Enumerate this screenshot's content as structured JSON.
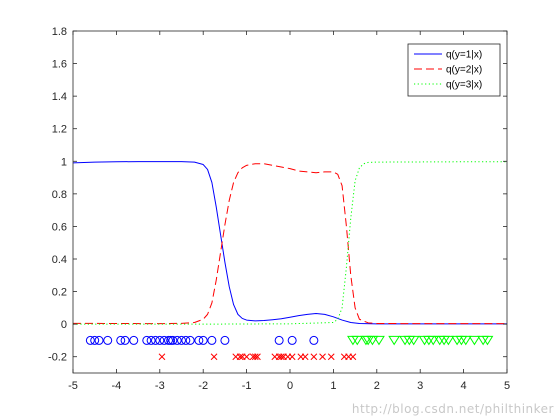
{
  "chart_data": {
    "type": "line",
    "title": "",
    "xlabel": "",
    "ylabel": "",
    "xlim": [
      -5,
      5
    ],
    "ylim": [
      -0.3,
      1.8
    ],
    "xticks": [
      -5,
      -4,
      -3,
      -2,
      -1,
      0,
      1,
      2,
      3,
      4,
      5
    ],
    "xtick_labels": [
      "-5",
      "-4",
      "-3",
      "-2",
      "-1",
      "0",
      "1",
      "2",
      "3",
      "4",
      "5"
    ],
    "yticks": [
      -0.2,
      0,
      0.2,
      0.4,
      0.6,
      0.8,
      1,
      1.2,
      1.4,
      1.6,
      1.8
    ],
    "ytick_labels": [
      "-0.2",
      "0",
      "0.2",
      "0.4",
      "0.6",
      "0.8",
      "1",
      "1.2",
      "1.4",
      "1.6",
      "1.8"
    ],
    "grid": false,
    "legend_position": "top-right",
    "series": [
      {
        "name": "q(y=1|x)",
        "color": "#0000ff",
        "style": "solid",
        "points": [
          [
            -5,
            0.99
          ],
          [
            -4.5,
            0.995
          ],
          [
            -4,
            0.997
          ],
          [
            -3.5,
            0.998
          ],
          [
            -3,
            0.998
          ],
          [
            -2.5,
            0.998
          ],
          [
            -2.2,
            0.995
          ],
          [
            -2.0,
            0.98
          ],
          [
            -1.9,
            0.95
          ],
          [
            -1.8,
            0.87
          ],
          [
            -1.7,
            0.72
          ],
          [
            -1.6,
            0.55
          ],
          [
            -1.5,
            0.38
          ],
          [
            -1.4,
            0.23
          ],
          [
            -1.3,
            0.12
          ],
          [
            -1.2,
            0.06
          ],
          [
            -1.1,
            0.035
          ],
          [
            -1.0,
            0.025
          ],
          [
            -0.8,
            0.02
          ],
          [
            -0.6,
            0.022
          ],
          [
            -0.4,
            0.027
          ],
          [
            -0.2,
            0.033
          ],
          [
            0,
            0.042
          ],
          [
            0.2,
            0.052
          ],
          [
            0.4,
            0.06
          ],
          [
            0.6,
            0.065
          ],
          [
            0.8,
            0.06
          ],
          [
            1.0,
            0.045
          ],
          [
            1.2,
            0.025
          ],
          [
            1.4,
            0.01
          ],
          [
            1.6,
            0.004
          ],
          [
            2,
            0.002
          ],
          [
            3,
            0.002
          ],
          [
            4,
            0.002
          ],
          [
            5,
            0.002
          ]
        ]
      },
      {
        "name": "q(y=2|x)",
        "color": "#ff0000",
        "style": "dashed",
        "points": [
          [
            -5,
            0.005
          ],
          [
            -4,
            0.004
          ],
          [
            -3,
            0.003
          ],
          [
            -2.5,
            0.005
          ],
          [
            -2.2,
            0.01
          ],
          [
            -2.0,
            0.03
          ],
          [
            -1.9,
            0.06
          ],
          [
            -1.8,
            0.13
          ],
          [
            -1.7,
            0.27
          ],
          [
            -1.6,
            0.44
          ],
          [
            -1.5,
            0.61
          ],
          [
            -1.4,
            0.76
          ],
          [
            -1.3,
            0.87
          ],
          [
            -1.2,
            0.93
          ],
          [
            -1.1,
            0.96
          ],
          [
            -1.0,
            0.975
          ],
          [
            -0.8,
            0.985
          ],
          [
            -0.6,
            0.985
          ],
          [
            -0.4,
            0.975
          ],
          [
            -0.2,
            0.965
          ],
          [
            0,
            0.955
          ],
          [
            0.2,
            0.94
          ],
          [
            0.4,
            0.935
          ],
          [
            0.6,
            0.93
          ],
          [
            0.8,
            0.935
          ],
          [
            1.0,
            0.935
          ],
          [
            1.1,
            0.92
          ],
          [
            1.2,
            0.85
          ],
          [
            1.3,
            0.6
          ],
          [
            1.4,
            0.3
          ],
          [
            1.5,
            0.1
          ],
          [
            1.6,
            0.03
          ],
          [
            1.8,
            0.008
          ],
          [
            2,
            0.004
          ],
          [
            3,
            0.003
          ],
          [
            4,
            0.003
          ],
          [
            5,
            0.003
          ]
        ]
      },
      {
        "name": "q(y=3|x)",
        "color": "#00ff00",
        "style": "dotted",
        "points": [
          [
            -5,
            0.0
          ],
          [
            -2,
            0.0
          ],
          [
            -1,
            0.001
          ],
          [
            0,
            0.002
          ],
          [
            1.0,
            0.01
          ],
          [
            1.1,
            0.03
          ],
          [
            1.2,
            0.1
          ],
          [
            1.3,
            0.35
          ],
          [
            1.4,
            0.65
          ],
          [
            1.5,
            0.88
          ],
          [
            1.6,
            0.96
          ],
          [
            1.7,
            0.985
          ],
          [
            1.8,
            0.993
          ],
          [
            2,
            0.995
          ],
          [
            3,
            0.996
          ],
          [
            4,
            0.997
          ],
          [
            5,
            0.997
          ]
        ]
      }
    ],
    "samples": [
      {
        "class": "1",
        "marker": "circle",
        "color": "#0000ff",
        "y": -0.1,
        "x": [
          -4.6,
          -4.5,
          -4.4,
          -4.2,
          -3.9,
          -3.8,
          -3.6,
          -3.3,
          -3.2,
          -3.1,
          -3.0,
          -2.9,
          -2.8,
          -2.75,
          -2.7,
          -2.6,
          -2.5,
          -2.4,
          -2.3,
          -2.1,
          -2.0,
          -1.8,
          -1.5,
          -0.25,
          0.05,
          0.55
        ]
      },
      {
        "class": "2",
        "marker": "x",
        "color": "#ff0000",
        "y": -0.2,
        "x": [
          -2.95,
          -1.75,
          -1.25,
          -1.15,
          -1.1,
          -1.0,
          -0.85,
          -0.8,
          -0.75,
          -0.35,
          -0.25,
          -0.2,
          -0.15,
          -0.05,
          0.05,
          0.25,
          0.35,
          0.55,
          0.75,
          0.95,
          1.25,
          1.35,
          1.45
        ]
      },
      {
        "class": "3",
        "marker": "triangle-down",
        "color": "#00ff00",
        "y": -0.1,
        "x": [
          1.45,
          1.55,
          1.75,
          1.8,
          1.9,
          2.05,
          2.4,
          2.65,
          2.75,
          2.85,
          3.1,
          3.2,
          3.3,
          3.45,
          3.55,
          3.65,
          3.85,
          3.95,
          4.05,
          4.25,
          4.45,
          4.55
        ]
      }
    ]
  },
  "watermark": "http://blog.csdn.net/philthinker"
}
